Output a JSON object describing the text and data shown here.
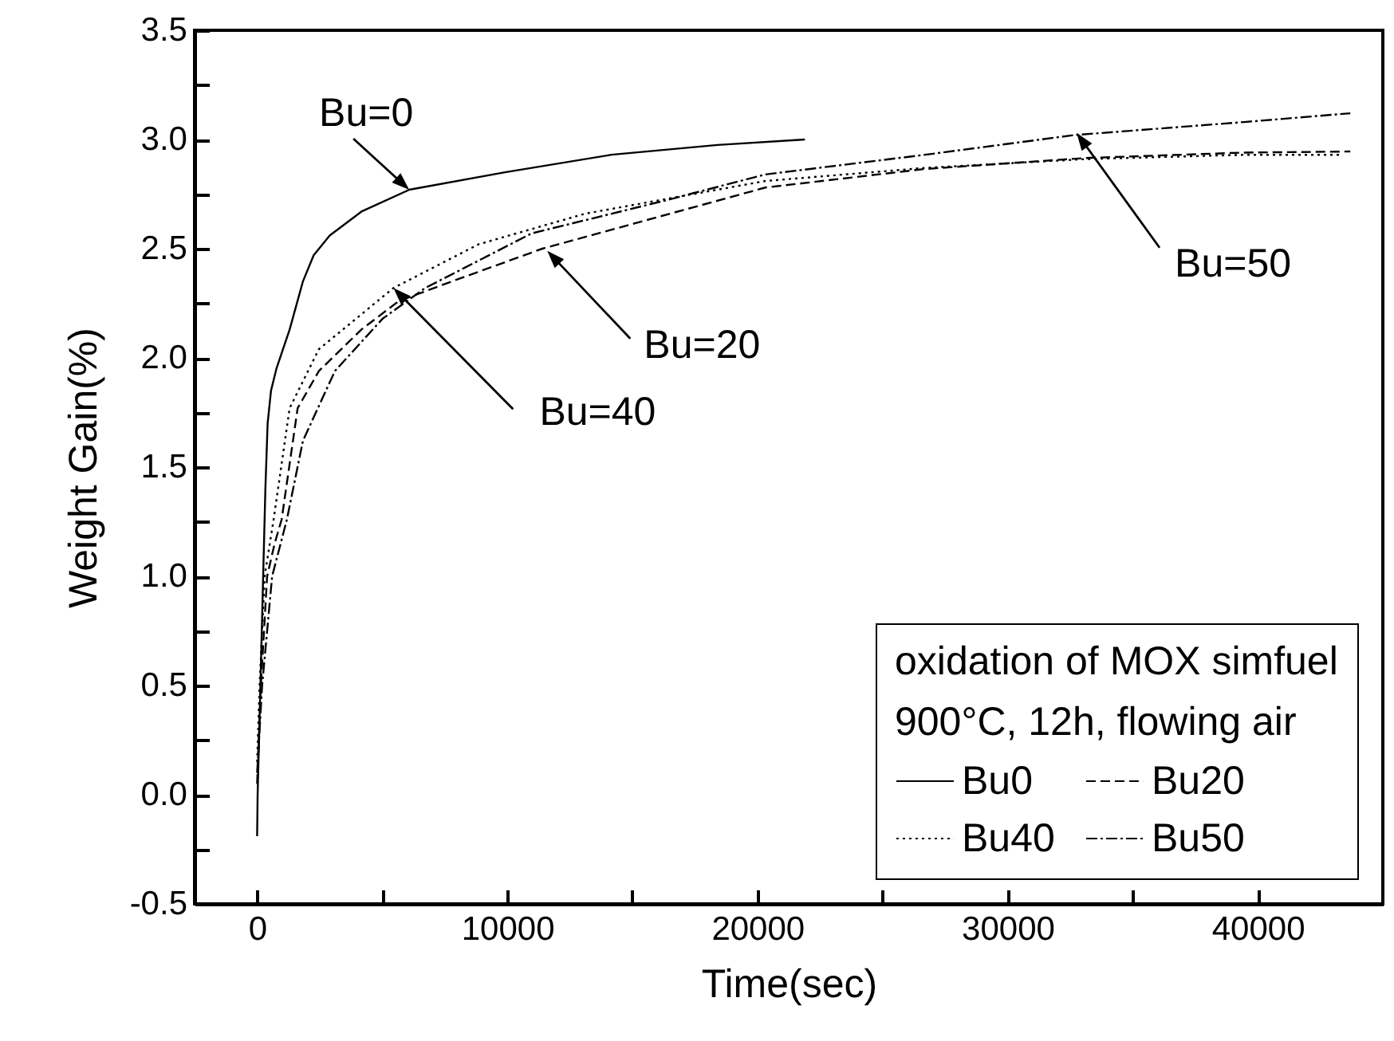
{
  "chart_data": {
    "type": "line",
    "xlabel": "Time(sec)",
    "ylabel": "Weight Gain(%)",
    "legend_title": "oxidation of MOX simfuel\n900°C, 12h, flowing air",
    "legend": "bottom right",
    "grid": false,
    "xlim": [
      -2500,
      45000
    ],
    "xticks": [
      0,
      {
        "value": 5000,
        "label": null
      },
      10000,
      {
        "value": 15000,
        "label": null
      },
      20000,
      {
        "value": 25000,
        "label": null
      },
      30000,
      {
        "value": 35000,
        "label": null
      },
      40000
    ],
    "ylim": [
      -0.5,
      3.5
    ],
    "yticks": [
      -0.5,
      {
        "value": -0.25,
        "label": null
      },
      {
        "value": 0,
        "label": "0.0"
      },
      {
        "value": 0.25,
        "label": null
      },
      0.5,
      {
        "value": 0.75,
        "label": null
      },
      {
        "value": 1,
        "label": "1.0"
      },
      {
        "value": 1.25,
        "label": null
      },
      1.5,
      {
        "value": 1.75,
        "label": null
      },
      {
        "value": 2,
        "label": "2.0"
      },
      {
        "value": 2.25,
        "label": null
      },
      2.5,
      {
        "value": 2.75,
        "label": null
      },
      {
        "value": 3,
        "label": "3.0"
      },
      {
        "value": 3.25,
        "label": null
      },
      3.5
    ],
    "series": [
      {
        "name": "Bu0",
        "color": "#000000",
        "line_style": "solid",
        "x": [
          0,
          20,
          120,
          230,
          330,
          420,
          555,
          770,
          1300,
          1830,
          2260,
          2900,
          4170,
          6080,
          9910,
          14160,
          18400,
          21900
        ],
        "values": [
          -0.19,
          0.0,
          0.45,
          0.95,
          1.4,
          1.7,
          1.85,
          1.95,
          2.13,
          2.35,
          2.47,
          2.56,
          2.67,
          2.77,
          2.85,
          2.93,
          2.975,
          3.0
        ]
      },
      {
        "name": "Bu20",
        "color": "#000000",
        "line_style": "dashed",
        "x": [
          0,
          150,
          400,
          700,
          980,
          1620,
          2470,
          4170,
          5660,
          7780,
          11400,
          15220,
          20320,
          26700,
          33080,
          39460,
          43700
        ],
        "values": [
          0.05,
          0.5,
          1.0,
          1.15,
          1.26,
          1.77,
          1.94,
          2.13,
          2.26,
          2.35,
          2.5,
          2.62,
          2.78,
          2.865,
          2.915,
          2.94,
          2.945
        ]
      },
      {
        "name": "Bu40",
        "color": "#000000",
        "line_style": "dotted",
        "x": [
          0,
          100,
          300,
          660,
          1300,
          2470,
          5450,
          8850,
          13100,
          20320,
          26700,
          33080,
          39460,
          43400
        ],
        "values": [
          0.15,
          0.5,
          1.0,
          1.26,
          1.77,
          2.04,
          2.32,
          2.52,
          2.66,
          2.81,
          2.87,
          2.91,
          2.93,
          2.93
        ]
      },
      {
        "name": "Bu50",
        "color": "#000000",
        "line_style": "dashdot",
        "x": [
          0,
          200,
          600,
          1190,
          1830,
          3110,
          5020,
          6720,
          10970,
          16290,
          20320,
          26700,
          32650,
          39460,
          43700
        ],
        "values": [
          0.1,
          0.5,
          1.0,
          1.26,
          1.62,
          1.94,
          2.18,
          2.32,
          2.57,
          2.72,
          2.84,
          2.93,
          3.02,
          3.08,
          3.12
        ]
      }
    ],
    "annotations": [
      {
        "text": "Bu=0",
        "x": 6080,
        "y": 2.77
      },
      {
        "text": "Bu=20",
        "x": 11600,
        "y": 2.49
      },
      {
        "text": "Bu=40",
        "x": 5450,
        "y": 2.32
      },
      {
        "text": "Bu=50",
        "x": 32760,
        "y": 3.03
      }
    ]
  }
}
